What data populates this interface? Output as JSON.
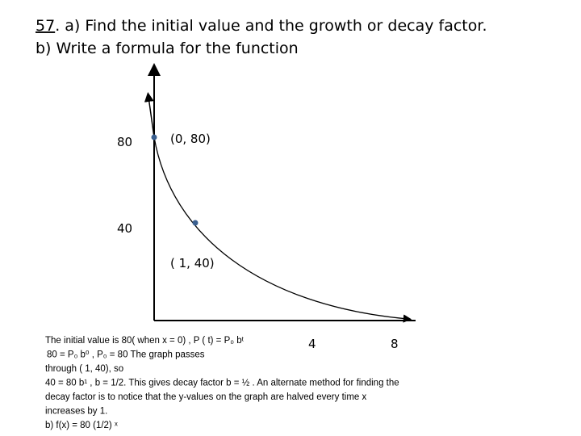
{
  "title": {
    "number": "57",
    "text": ". a) Find the initial value and the growth or decay factor.",
    "line2": "b) Write a formula for the function"
  },
  "graph": {
    "y_labels": [
      "80",
      "40"
    ],
    "point_labels": [
      "(0, 80)",
      "( 1, 40)"
    ],
    "x_labels": [
      "4",
      "8"
    ]
  },
  "solution": {
    "lines": [
      "The initial value is 80( when x = 0) , P ( t) = P₀ bᵗ",
      "80 = P₀ b⁰ , P₀ = 80 The graph passes",
      "through ( 1, 40), so",
      "40 = 80 b¹ , b = 1/2. This gives decay factor b = ½ . An alternate method for finding the",
      "decay factor is to notice that the y-values on the graph are halved every time x",
      "increases by 1.",
      "b) f(x) = 80 (1/2) ˣ"
    ]
  }
}
